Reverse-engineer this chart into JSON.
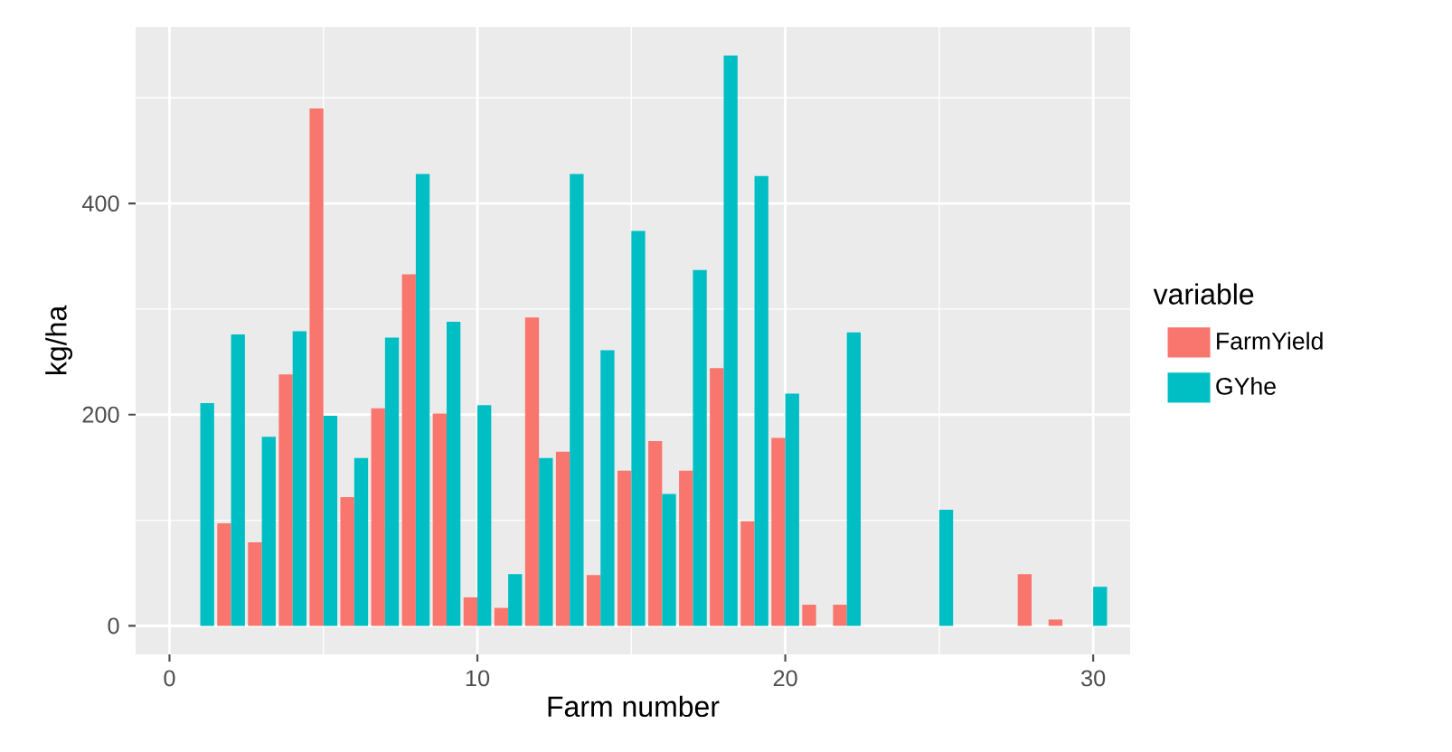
{
  "chart_data": {
    "type": "bar",
    "xlabel": "Farm number",
    "ylabel": "kg/ha",
    "legend_title": "variable",
    "x": [
      1,
      2,
      3,
      4,
      5,
      6,
      7,
      8,
      9,
      10,
      11,
      12,
      13,
      14,
      15,
      16,
      17,
      18,
      19,
      20,
      21,
      22,
      23,
      24,
      25,
      26,
      27,
      28,
      29,
      30
    ],
    "series": [
      {
        "name": "FarmYield",
        "color": "#f8766d",
        "values": [
          null,
          97,
          79,
          238,
          490,
          122,
          206,
          333,
          201,
          27,
          17,
          292,
          165,
          48,
          147,
          175,
          147,
          244,
          99,
          178,
          20,
          20,
          null,
          null,
          null,
          null,
          null,
          49,
          6,
          null
        ]
      },
      {
        "name": "GYhe",
        "color": "#00bfc4",
        "values": [
          211,
          276,
          179,
          279,
          199,
          159,
          273,
          428,
          288,
          209,
          49,
          159,
          428,
          261,
          374,
          125,
          337,
          540,
          426,
          220,
          null,
          278,
          null,
          null,
          110,
          null,
          null,
          null,
          null,
          37
        ]
      }
    ],
    "xlim": [
      -1.1,
      31.2
    ],
    "ylim": [
      -27,
      567
    ],
    "xticks": [
      0,
      10,
      20,
      30
    ],
    "yticks": [
      0,
      200,
      400
    ],
    "grid": true,
    "legend": "right"
  }
}
